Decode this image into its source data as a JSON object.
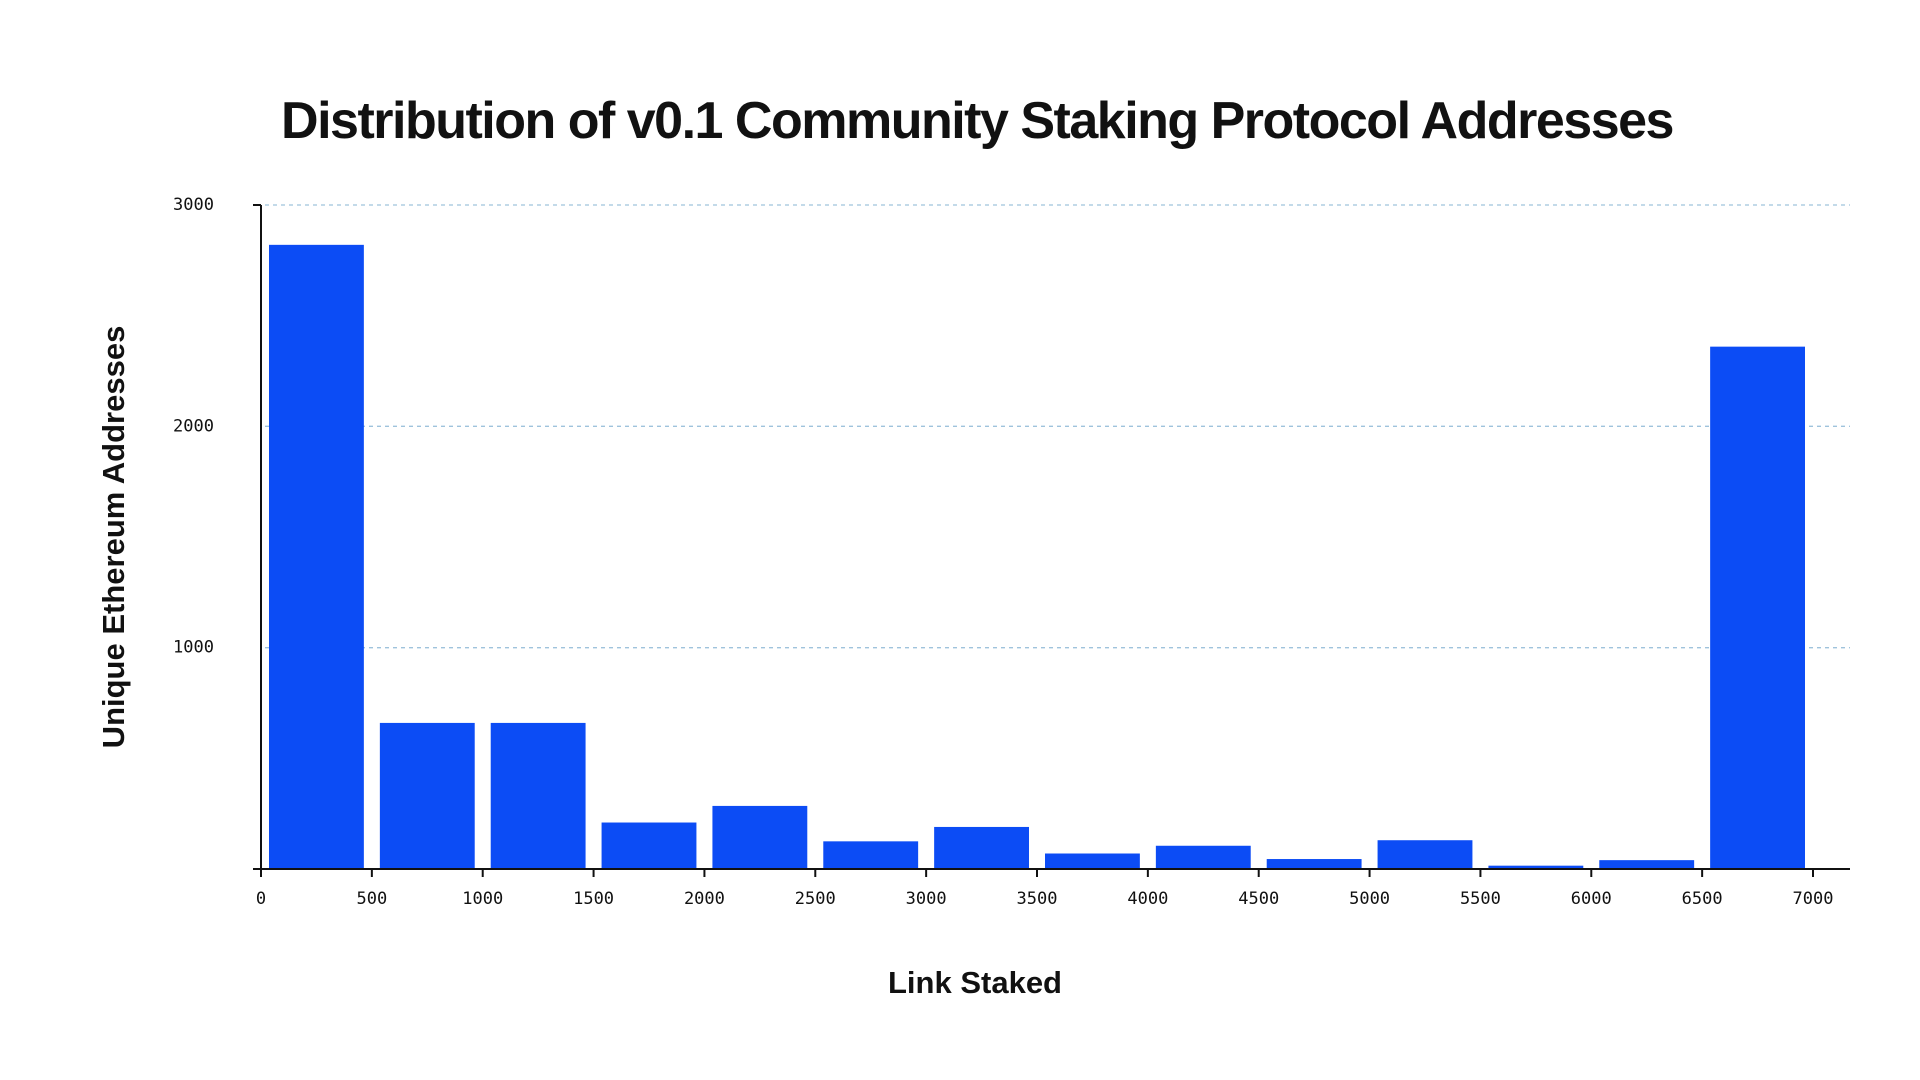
{
  "chart_data": {
    "type": "bar",
    "title": "Distribution of v0.1 Community Staking Protocol Addresses",
    "xlabel": "Link Staked",
    "ylabel": "Unique Ethereum Addresses",
    "x_ticks": [
      "0",
      "500",
      "1000",
      "1500",
      "2000",
      "2500",
      "3000",
      "3500",
      "4000",
      "4500",
      "5000",
      "5500",
      "6000",
      "6500",
      "7000"
    ],
    "y_ticks": [
      "3000",
      "2000",
      "1000"
    ],
    "xlim": [
      0,
      7000
    ],
    "ylim": [
      0,
      3000
    ],
    "bin_width": 500,
    "bins": [
      {
        "x0": 0,
        "x1": 500,
        "value": 2820
      },
      {
        "x0": 500,
        "x1": 1000,
        "value": 660
      },
      {
        "x0": 1000,
        "x1": 1500,
        "value": 660
      },
      {
        "x0": 1500,
        "x1": 2000,
        "value": 210
      },
      {
        "x0": 2000,
        "x1": 2500,
        "value": 285
      },
      {
        "x0": 2500,
        "x1": 3000,
        "value": 125
      },
      {
        "x0": 3000,
        "x1": 3500,
        "value": 190
      },
      {
        "x0": 3500,
        "x1": 4000,
        "value": 70
      },
      {
        "x0": 4000,
        "x1": 4500,
        "value": 105
      },
      {
        "x0": 4500,
        "x1": 5000,
        "value": 45
      },
      {
        "x0": 5000,
        "x1": 5500,
        "value": 130
      },
      {
        "x0": 5500,
        "x1": 6000,
        "value": 15
      },
      {
        "x0": 6000,
        "x1": 6500,
        "value": 40
      },
      {
        "x0": 6500,
        "x1": 7000,
        "value": 2360
      }
    ],
    "grid": true,
    "bar_color": "#0c4cf5",
    "grid_color": "#9fc3dc"
  }
}
